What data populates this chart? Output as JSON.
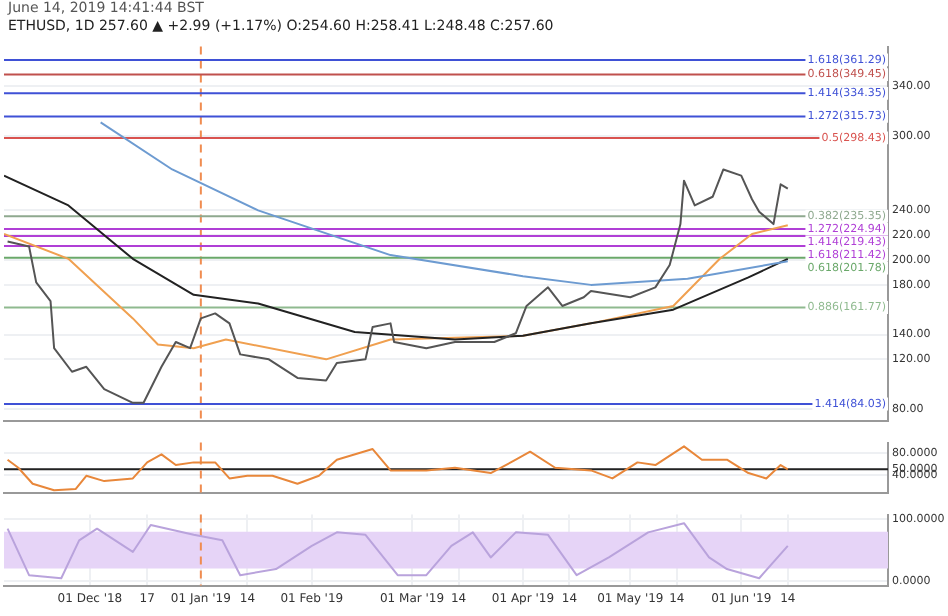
{
  "chart_data": [
    {
      "type": "line",
      "title": "ETHUSD, 1D 257.60 ▲ +2.99 (+1.17%) O:254.60 H:258.41 L:248.48 C:257.60",
      "annotations": [
        "June 14, 2019 14:41:44 BST"
      ],
      "xlim": [
        "2018-11-07",
        "2019-07-12"
      ],
      "ylim": [
        70,
        372
      ],
      "yticks": [
        {
          "value": 80,
          "label": "80.00"
        },
        {
          "value": 120,
          "label": "120.00"
        },
        {
          "value": 140,
          "label": "140.00"
        },
        {
          "value": 180,
          "label": "180.00"
        },
        {
          "value": 200,
          "label": "200.00"
        },
        {
          "value": 220,
          "label": "220.00"
        },
        {
          "value": 240,
          "label": "240.00"
        },
        {
          "value": 300,
          "label": "300.00"
        },
        {
          "value": 340,
          "label": "340.00"
        }
      ],
      "tick_labels": "y",
      "grid": true,
      "marker": "none",
      "series": [
        {
          "color": "#555555",
          "x": [
            "2018-11-08",
            "2018-11-14",
            "2018-11-16",
            "2018-11-20",
            "2018-11-21",
            "2018-11-26",
            "2018-11-30",
            "2018-12-05",
            "2018-12-13",
            "2018-12-16",
            "2018-12-21",
            "2018-12-25",
            "2018-12-29",
            "2019-01-01",
            "2019-01-05",
            "2019-01-09",
            "2019-01-12",
            "2019-01-20",
            "2019-01-28",
            "2019-02-05",
            "2019-02-08",
            "2019-02-16",
            "2019-02-18",
            "2019-02-23",
            "2019-02-24",
            "2019-03-05",
            "2019-03-13",
            "2019-03-24",
            "2019-03-30",
            "2019-04-02",
            "2019-04-08",
            "2019-04-12",
            "2019-04-18",
            "2019-04-20",
            "2019-05-01",
            "2019-05-08",
            "2019-05-12",
            "2019-05-15",
            "2019-05-16",
            "2019-05-19",
            "2019-05-24",
            "2019-05-27",
            "2019-06-01",
            "2019-06-04",
            "2019-06-06",
            "2019-06-10",
            "2019-06-12",
            "2019-06-14"
          ],
          "values": [
            215,
            211,
            182,
            167,
            129,
            110,
            114,
            96,
            85,
            85,
            114,
            134,
            129,
            153,
            157,
            149,
            124,
            120,
            105,
            103,
            117,
            120,
            146,
            149,
            134,
            129,
            134,
            134,
            141,
            163,
            178,
            163,
            170,
            175,
            170,
            178,
            196,
            229,
            264,
            244,
            251,
            273,
            268,
            249,
            239,
            229,
            261,
            257.6
          ]
        },
        {
          "color": "#6d9bd1",
          "x": [
            "2018-12-04",
            "2018-12-24",
            "2019-01-17",
            "2019-02-23",
            "2019-04-01",
            "2019-04-20",
            "2019-05-17",
            "2019-06-14"
          ],
          "values": [
            311,
            273,
            240,
            204,
            187,
            180,
            185,
            199
          ]
        },
        {
          "color": "#222222",
          "x": [
            "2018-11-07",
            "2018-11-25",
            "2018-12-13",
            "2018-12-30",
            "2019-01-17",
            "2019-02-13",
            "2019-03-13",
            "2019-04-01",
            "2019-04-20",
            "2019-05-13",
            "2019-06-03",
            "2019-06-14"
          ],
          "values": [
            268,
            244,
            201,
            172,
            165,
            142,
            136,
            139,
            149,
            160,
            186,
            201
          ]
        },
        {
          "color": "#f0a050",
          "x": [
            "2018-11-07",
            "2018-11-25",
            "2018-12-13",
            "2018-12-20",
            "2018-12-30",
            "2019-01-08",
            "2019-02-05",
            "2019-02-23",
            "2019-04-01",
            "2019-04-20",
            "2019-05-13",
            "2019-05-26",
            "2019-06-04",
            "2019-06-14"
          ],
          "values": [
            221,
            201,
            153,
            132,
            129,
            136,
            120,
            136,
            139,
            149,
            163,
            201,
            221,
            228
          ]
        }
      ],
      "ref_lines": [
        {
          "axis": "x",
          "value": "2019-01-01",
          "color": "#f08c50",
          "line_style": "dashed"
        },
        {
          "axis": "y",
          "value": 361.29,
          "label": "1.618(361.29)",
          "color": "#3f51d6"
        },
        {
          "axis": "y",
          "value": 349.45,
          "label": "0.618(349.45)",
          "color": "#c0504d"
        },
        {
          "axis": "y",
          "value": 334.35,
          "label": "1.414(334.35)",
          "color": "#3f51d6"
        },
        {
          "axis": "y",
          "value": 315.73,
          "label": "1.272(315.73)",
          "color": "#3f51d6"
        },
        {
          "axis": "y",
          "value": 298.43,
          "label": "0.5(298.43)",
          "color": "#d9534f"
        },
        {
          "axis": "y",
          "value": 235.35,
          "label": "0.382(235.35)",
          "color": "#8fa98f"
        },
        {
          "axis": "y",
          "value": 224.94,
          "label": "1.272(224.94)",
          "color": "#b03fd6"
        },
        {
          "axis": "y",
          "value": 219.43,
          "label": "1.414(219.43)",
          "color": "#b03fd6"
        },
        {
          "axis": "y",
          "value": 211.42,
          "label": "1.618(211.42)",
          "color": "#b03fd6"
        },
        {
          "axis": "y",
          "value": 201.78,
          "label": "0.618(201.78)",
          "color": "#6aa86a"
        },
        {
          "axis": "y",
          "value": 161.77,
          "label": "0.886(161.77)",
          "color": "#8fba8f"
        },
        {
          "axis": "y",
          "value": 84.03,
          "label": "1.414(84.03)",
          "color": "#3f51d6"
        }
      ]
    },
    {
      "type": "line",
      "xlim": [
        "2018-11-07",
        "2019-07-12"
      ],
      "ylim": [
        5,
        100
      ],
      "yticks": [
        {
          "value": 40,
          "label": "40.0000"
        },
        {
          "value": 50,
          "label": "50.0000"
        },
        {
          "value": 80,
          "label": "80.0000"
        }
      ],
      "tick_labels": "y",
      "grid": true,
      "marker": "none",
      "series": [
        {
          "color": "#e8873a",
          "x": [
            "2018-11-08",
            "2018-11-11",
            "2018-11-15",
            "2018-11-21",
            "2018-11-27",
            "2018-11-30",
            "2018-12-05",
            "2018-12-13",
            "2018-12-17",
            "2018-12-21",
            "2018-12-25",
            "2018-12-30",
            "2019-01-05",
            "2019-01-09",
            "2019-01-14",
            "2019-01-21",
            "2019-01-28",
            "2019-02-03",
            "2019-02-08",
            "2019-02-18",
            "2019-02-23",
            "2019-03-05",
            "2019-03-13",
            "2019-03-23",
            "2019-03-30",
            "2019-04-03",
            "2019-04-10",
            "2019-04-20",
            "2019-04-26",
            "2019-05-03",
            "2019-05-08",
            "2019-05-16",
            "2019-05-21",
            "2019-05-28",
            "2019-06-03",
            "2019-06-08",
            "2019-06-12",
            "2019-06-14"
          ],
          "values": [
            68,
            53,
            23,
            11,
            13,
            38,
            28,
            33,
            63,
            78,
            58,
            63,
            63,
            33,
            38,
            38,
            23,
            38,
            68,
            88,
            48,
            48,
            53,
            43,
            68,
            83,
            53,
            48,
            33,
            63,
            58,
            93,
            68,
            68,
            43,
            33,
            58,
            50
          ]
        }
      ],
      "ref_lines": [
        {
          "axis": "y",
          "value": 50,
          "color": "#222222"
        },
        {
          "axis": "x",
          "value": "2019-01-01",
          "color": "#f08c50",
          "line_style": "dashed"
        }
      ]
    },
    {
      "type": "line",
      "xlim": [
        "2018-11-07",
        "2019-07-12"
      ],
      "ylim": [
        -8,
        108
      ],
      "yticks": [
        {
          "value": 0,
          "label": "0.0000"
        },
        {
          "value": 100,
          "label": "100.0000"
        }
      ],
      "xticks": [
        {
          "value": "2018-12-01",
          "label": "01 Dec '18"
        },
        {
          "value": "2018-12-17",
          "label": "17"
        },
        {
          "value": "2019-01-01",
          "label": "01 Jan '19"
        },
        {
          "value": "2019-01-14",
          "label": "14"
        },
        {
          "value": "2019-02-01",
          "label": "01 Feb '19"
        },
        {
          "value": "2019-03-01",
          "label": "01 Mar '19"
        },
        {
          "value": "2019-03-14",
          "label": "14"
        },
        {
          "value": "2019-04-01",
          "label": "01 Apr '19"
        },
        {
          "value": "2019-04-14",
          "label": "14"
        },
        {
          "value": "2019-05-01",
          "label": "01 May '19"
        },
        {
          "value": "2019-05-14",
          "label": "14"
        },
        {
          "value": "2019-06-01",
          "label": "01 Jun '19"
        },
        {
          "value": "2019-06-14",
          "label": "14"
        }
      ],
      "grid": true,
      "marker": "none",
      "series": [
        {
          "color": "#b9a3dc",
          "x": [
            "2018-11-08",
            "2018-11-14",
            "2018-11-23",
            "2018-11-28",
            "2018-12-03",
            "2018-12-13",
            "2018-12-18",
            "2018-12-30",
            "2019-01-07",
            "2019-01-12",
            "2019-01-22",
            "2019-02-01",
            "2019-02-08",
            "2019-02-16",
            "2019-02-25",
            "2019-03-05",
            "2019-03-12",
            "2019-03-18",
            "2019-03-23",
            "2019-03-30",
            "2019-04-08",
            "2019-04-16",
            "2019-04-25",
            "2019-05-06",
            "2019-05-16",
            "2019-05-23",
            "2019-05-28",
            "2019-06-06",
            "2019-06-14"
          ],
          "values": [
            85,
            9,
            4,
            66,
            85,
            47,
            91,
            75,
            66,
            9,
            19,
            57,
            79,
            75,
            9,
            9,
            57,
            79,
            38,
            79,
            75,
            9,
            38,
            79,
            94,
            38,
            19,
            4,
            57
          ]
        }
      ],
      "bands": [
        {
          "axis": "y",
          "from": 20,
          "to": 80,
          "color": "#e6d4f7"
        }
      ],
      "ref_lines": [
        {
          "axis": "x",
          "value": "2019-01-01",
          "color": "#f08c50",
          "line_style": "dashed"
        }
      ]
    }
  ]
}
